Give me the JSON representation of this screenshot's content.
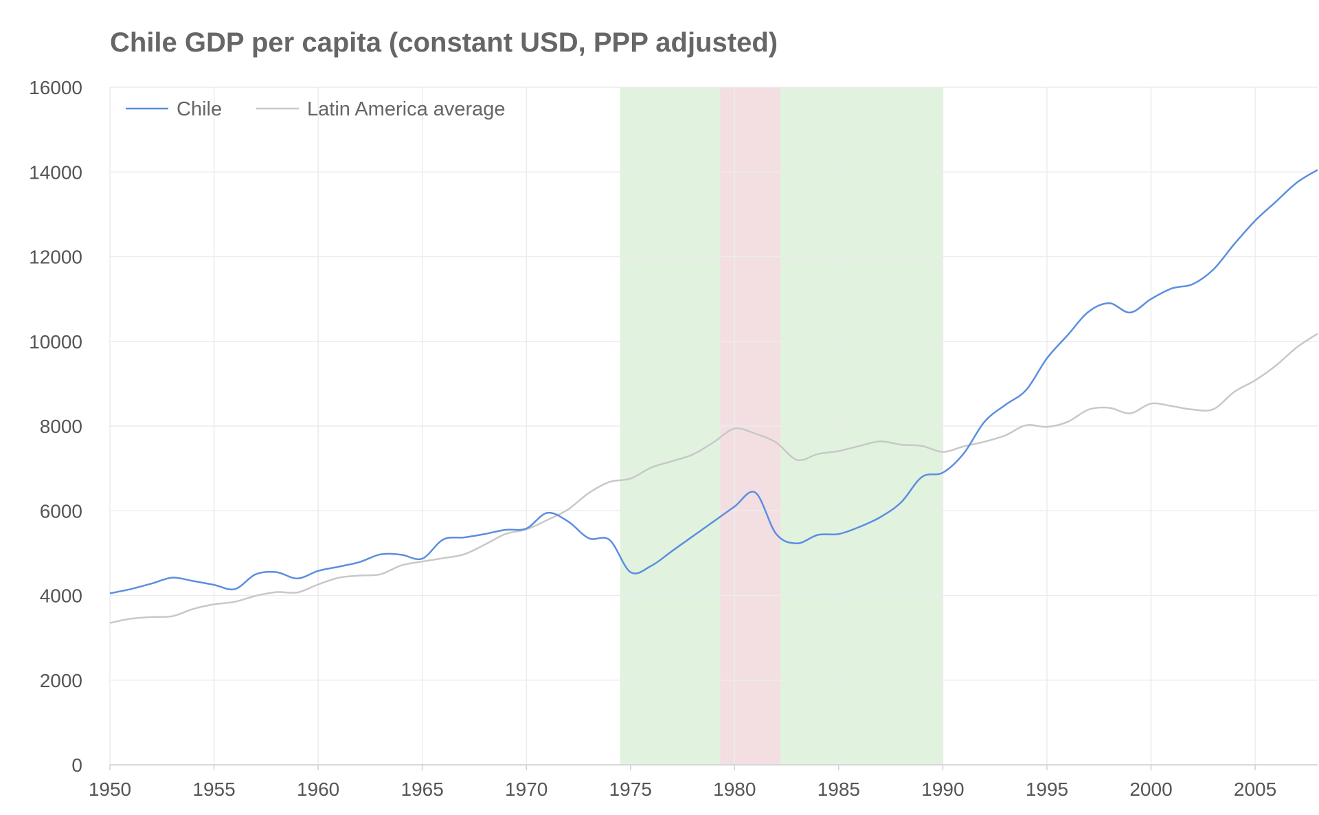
{
  "chart_data": {
    "type": "line",
    "title": "Chile GDP per capita (constant USD, PPP adjusted)",
    "xlabel": "",
    "ylabel": "",
    "xlim": [
      1950,
      2008
    ],
    "ylim": [
      0,
      16000
    ],
    "x_ticks": [
      1950,
      1955,
      1960,
      1965,
      1970,
      1975,
      1980,
      1985,
      1990,
      1995,
      2000,
      2005
    ],
    "y_ticks": [
      0,
      2000,
      4000,
      6000,
      8000,
      10000,
      12000,
      14000,
      16000
    ],
    "grid": true,
    "legend_position": "top-left",
    "bands": [
      {
        "from": 1974.5,
        "to": 1979.3,
        "color": "#e1f3df"
      },
      {
        "from": 1979.3,
        "to": 1982.2,
        "color": "#f3dfe2"
      },
      {
        "from": 1982.2,
        "to": 1990.0,
        "color": "#e1f3df"
      }
    ],
    "series": [
      {
        "name": "Chile",
        "color": "#5b8ee0",
        "points": [
          [
            1950,
            4050
          ],
          [
            1951,
            4150
          ],
          [
            1952,
            4280
          ],
          [
            1953,
            4420
          ],
          [
            1954,
            4340
          ],
          [
            1955,
            4250
          ],
          [
            1956,
            4150
          ],
          [
            1957,
            4500
          ],
          [
            1958,
            4550
          ],
          [
            1959,
            4400
          ],
          [
            1960,
            4580
          ],
          [
            1961,
            4680
          ],
          [
            1962,
            4790
          ],
          [
            1963,
            4970
          ],
          [
            1964,
            4960
          ],
          [
            1965,
            4870
          ],
          [
            1966,
            5320
          ],
          [
            1967,
            5370
          ],
          [
            1968,
            5450
          ],
          [
            1969,
            5550
          ],
          [
            1970,
            5580
          ],
          [
            1971,
            5950
          ],
          [
            1972,
            5750
          ],
          [
            1973,
            5350
          ],
          [
            1974,
            5310
          ],
          [
            1975,
            4550
          ],
          [
            1976,
            4700
          ],
          [
            1977,
            5050
          ],
          [
            1978,
            5400
          ],
          [
            1979,
            5750
          ],
          [
            1980,
            6100
          ],
          [
            1981,
            6430
          ],
          [
            1982,
            5450
          ],
          [
            1983,
            5230
          ],
          [
            1984,
            5430
          ],
          [
            1985,
            5450
          ],
          [
            1986,
            5620
          ],
          [
            1987,
            5850
          ],
          [
            1988,
            6200
          ],
          [
            1989,
            6800
          ],
          [
            1990,
            6900
          ],
          [
            1991,
            7350
          ],
          [
            1992,
            8100
          ],
          [
            1993,
            8500
          ],
          [
            1994,
            8850
          ],
          [
            1995,
            9600
          ],
          [
            1996,
            10150
          ],
          [
            1997,
            10700
          ],
          [
            1998,
            10900
          ],
          [
            1999,
            10680
          ],
          [
            2000,
            11000
          ],
          [
            2001,
            11250
          ],
          [
            2002,
            11350
          ],
          [
            2003,
            11700
          ],
          [
            2004,
            12300
          ],
          [
            2005,
            12850
          ],
          [
            2006,
            13300
          ],
          [
            2007,
            13750
          ],
          [
            2008,
            14050
          ]
        ]
      },
      {
        "name": "Latin America average",
        "color": "#c8c8c8",
        "points": [
          [
            1950,
            3350
          ],
          [
            1951,
            3450
          ],
          [
            1952,
            3490
          ],
          [
            1953,
            3510
          ],
          [
            1954,
            3680
          ],
          [
            1955,
            3790
          ],
          [
            1956,
            3850
          ],
          [
            1957,
            3990
          ],
          [
            1958,
            4080
          ],
          [
            1959,
            4070
          ],
          [
            1960,
            4260
          ],
          [
            1961,
            4420
          ],
          [
            1962,
            4470
          ],
          [
            1963,
            4500
          ],
          [
            1964,
            4710
          ],
          [
            1965,
            4800
          ],
          [
            1966,
            4880
          ],
          [
            1967,
            4970
          ],
          [
            1968,
            5200
          ],
          [
            1969,
            5450
          ],
          [
            1970,
            5560
          ],
          [
            1971,
            5780
          ],
          [
            1972,
            6030
          ],
          [
            1973,
            6420
          ],
          [
            1974,
            6680
          ],
          [
            1975,
            6760
          ],
          [
            1976,
            7020
          ],
          [
            1977,
            7170
          ],
          [
            1978,
            7330
          ],
          [
            1979,
            7620
          ],
          [
            1980,
            7940
          ],
          [
            1981,
            7820
          ],
          [
            1982,
            7610
          ],
          [
            1983,
            7200
          ],
          [
            1984,
            7340
          ],
          [
            1985,
            7410
          ],
          [
            1986,
            7530
          ],
          [
            1987,
            7640
          ],
          [
            1988,
            7560
          ],
          [
            1989,
            7530
          ],
          [
            1990,
            7390
          ],
          [
            1991,
            7520
          ],
          [
            1992,
            7630
          ],
          [
            1993,
            7780
          ],
          [
            1994,
            8020
          ],
          [
            1995,
            7980
          ],
          [
            1996,
            8100
          ],
          [
            1997,
            8390
          ],
          [
            1998,
            8430
          ],
          [
            1999,
            8300
          ],
          [
            2000,
            8530
          ],
          [
            2001,
            8470
          ],
          [
            2002,
            8390
          ],
          [
            2003,
            8400
          ],
          [
            2004,
            8810
          ],
          [
            2005,
            9080
          ],
          [
            2006,
            9430
          ],
          [
            2007,
            9860
          ],
          [
            2008,
            10180
          ]
        ]
      }
    ]
  }
}
